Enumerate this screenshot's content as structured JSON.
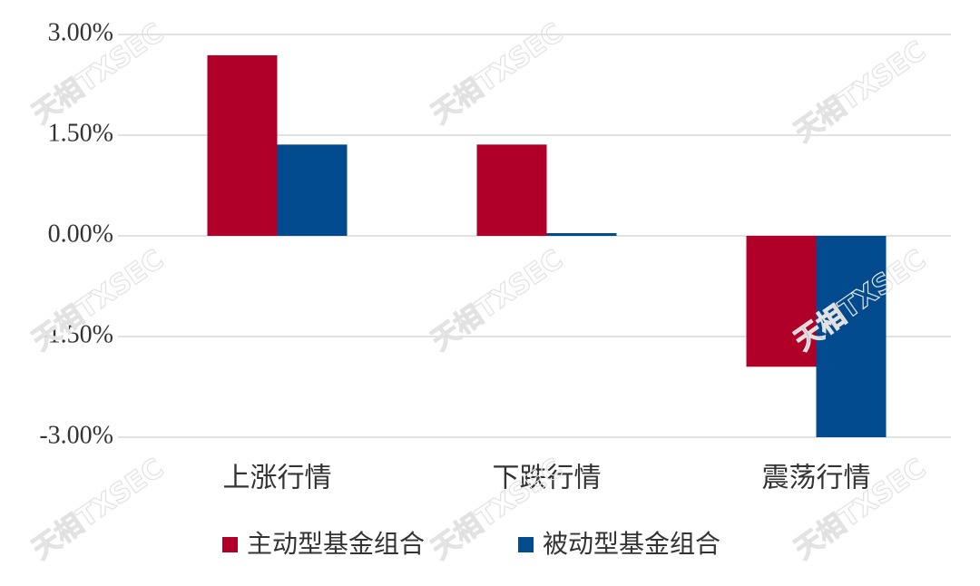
{
  "chart_data": {
    "type": "bar",
    "categories": [
      "上涨行情",
      "下跌行情",
      "震荡行情"
    ],
    "series": [
      {
        "name": "主动型基金组合",
        "color": "#b0002a",
        "values": [
          2.69,
          1.36,
          -1.95
        ]
      },
      {
        "name": "被动型基金组合",
        "color": "#004a8d",
        "values": [
          1.36,
          0.04,
          -3.0
        ]
      }
    ],
    "ylim": [
      -3,
      3
    ],
    "yticks": [
      {
        "value": -3,
        "label": "-3.00%"
      },
      {
        "value": -1.5,
        "label": "-1.50%"
      },
      {
        "value": 0,
        "label": "0.00%"
      },
      {
        "value": 1.5,
        "label": "1.50%"
      },
      {
        "value": 3,
        "label": "3.00%"
      }
    ],
    "grid": true,
    "legend": "bottom",
    "watermark": "天相TXSEC"
  }
}
